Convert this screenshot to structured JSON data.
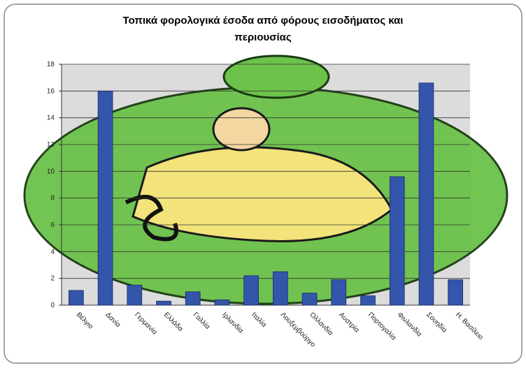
{
  "chart_data": {
    "type": "bar",
    "title": "Τοπικά φορολογικά έσοδα από φόρους εισοδήματος και περιουσίας",
    "categories": [
      "Βέλγιο",
      "Δανία",
      "Γερμανία",
      "Ελλάδα",
      "Γαλλία",
      "Ιρλανδία",
      "Ιταλία",
      "Λουξεμβούργο",
      "Ολλανδία",
      "Αυστρία",
      "Πορτογαλία",
      "Φινλανδία",
      "Σουηδία",
      "Η. Βασίλειο"
    ],
    "values": [
      1.1,
      16,
      1.5,
      0.3,
      1.0,
      0.4,
      2.2,
      2.5,
      0.9,
      1.9,
      0.7,
      9.6,
      16.6,
      1.9
    ],
    "color": "#3355aa",
    "ylim": [
      0,
      18
    ],
    "yticks": [
      0,
      2,
      4,
      6,
      8,
      10,
      12,
      14,
      16,
      18
    ],
    "grid": true
  }
}
